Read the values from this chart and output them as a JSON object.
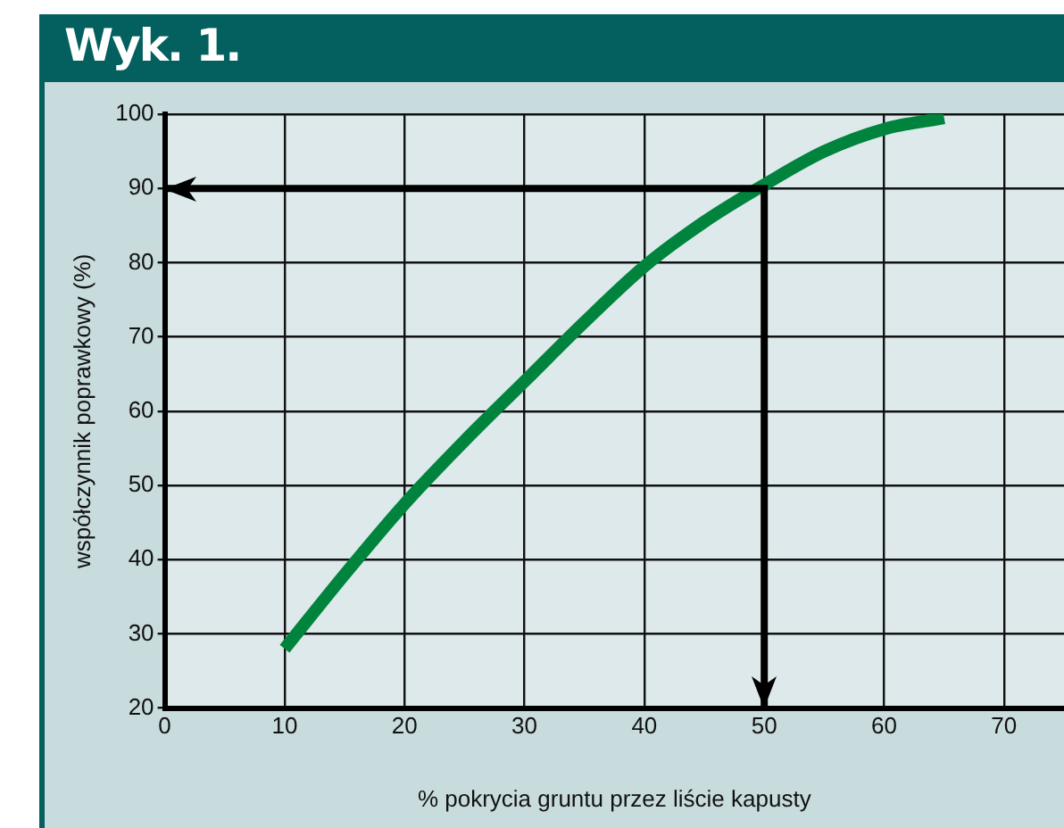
{
  "chart_data": {
    "type": "line",
    "title": "Wyk. 1.",
    "xlabel": "% pokrycia gruntu przez liście kapusty",
    "ylabel": "współczynnik poprawkowy (%)",
    "x": [
      10,
      15,
      20,
      25,
      30,
      35,
      40,
      45,
      50,
      55,
      60,
      65
    ],
    "series": [
      {
        "color": "#00843d",
        "values": [
          28,
          38,
          47.5,
          56,
          64,
          72,
          79.5,
          85.5,
          90.5,
          95,
          98,
          99.5
        ]
      }
    ],
    "xlim": [
      0,
      75
    ],
    "xticks": [
      0,
      10,
      20,
      30,
      40,
      50,
      60,
      70
    ],
    "ylim": [
      20,
      100
    ],
    "yticks": [
      20,
      30,
      40,
      50,
      60,
      70,
      80,
      90,
      100
    ],
    "ref_lines": [
      {
        "axis": "x",
        "value": 50,
        "color": "#000000",
        "line_style": "solid"
      },
      {
        "axis": "y",
        "value": 90,
        "color": "#000000",
        "line_style": "solid"
      }
    ],
    "grid": true,
    "legend": false,
    "marker": "none",
    "line_style": "solid"
  }
}
